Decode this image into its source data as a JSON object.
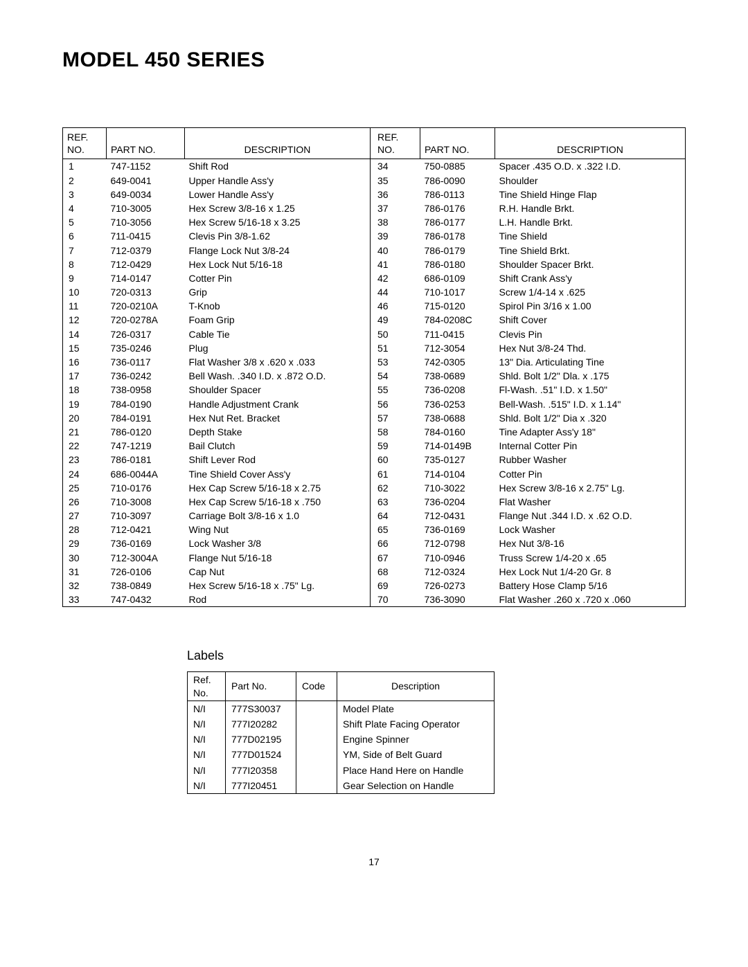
{
  "title": "MODEL 450 SERIES",
  "page_number": "17",
  "main_table": {
    "headers": {
      "ref1": "REF.",
      "ref2": "NO.",
      "part": "PART NO.",
      "desc": "DESCRIPTION"
    },
    "left": [
      {
        "r": "1",
        "p": "747-1152",
        "d": "Shift Rod"
      },
      {
        "r": "2",
        "p": "649-0041",
        "d": "Upper Handle Ass'y"
      },
      {
        "r": "3",
        "p": "649-0034",
        "d": "Lower Handle Ass'y"
      },
      {
        "r": "4",
        "p": "710-3005",
        "d": "Hex Screw 3/8-16 x 1.25"
      },
      {
        "r": "5",
        "p": "710-3056",
        "d": "Hex Screw 5/16-18 x 3.25"
      },
      {
        "r": "6",
        "p": "711-0415",
        "d": "Clevis Pin 3/8-1.62"
      },
      {
        "r": "7",
        "p": "712-0379",
        "d": "Flange Lock Nut 3/8-24"
      },
      {
        "r": "8",
        "p": "712-0429",
        "d": "Hex Lock Nut 5/16-18"
      },
      {
        "r": "9",
        "p": "714-0147",
        "d": "Cotter Pin"
      },
      {
        "r": "10",
        "p": "720-0313",
        "d": "Grip"
      },
      {
        "r": "11",
        "p": "720-0210A",
        "d": "T-Knob"
      },
      {
        "r": "12",
        "p": "720-0278A",
        "d": "Foam Grip"
      },
      {
        "r": "14",
        "p": "726-0317",
        "d": "Cable Tie"
      },
      {
        "r": "15",
        "p": "735-0246",
        "d": "Plug"
      },
      {
        "r": "16",
        "p": "736-0117",
        "d": "Flat Washer 3/8 x .620 x .033"
      },
      {
        "r": "17",
        "p": "736-0242",
        "d": "Bell Wash. .340 I.D. x .872 O.D."
      },
      {
        "r": "18",
        "p": "738-0958",
        "d": "Shoulder Spacer"
      },
      {
        "r": "19",
        "p": "784-0190",
        "d": "Handle Adjustment Crank"
      },
      {
        "r": "20",
        "p": "784-0191",
        "d": "Hex Nut Ret. Bracket"
      },
      {
        "r": "21",
        "p": "786-0120",
        "d": "Depth Stake"
      },
      {
        "r": "22",
        "p": "747-1219",
        "d": "Bail Clutch"
      },
      {
        "r": "23",
        "p": "786-0181",
        "d": "Shift Lever Rod"
      },
      {
        "r": "24",
        "p": "686-0044A",
        "d": "Tine Shield Cover Ass'y"
      },
      {
        "r": "25",
        "p": "710-0176",
        "d": "Hex Cap Screw 5/16-18 x 2.75"
      },
      {
        "r": "26",
        "p": "710-3008",
        "d": "Hex Cap Screw 5/16-18 x .750"
      },
      {
        "r": "27",
        "p": "710-3097",
        "d": "Carriage Bolt 3/8-16  x 1.0"
      },
      {
        "r": "28",
        "p": "712-0421",
        "d": "Wing Nut"
      },
      {
        "r": "29",
        "p": "736-0169",
        "d": "Lock Washer 3/8"
      },
      {
        "r": "30",
        "p": "712-3004A",
        "d": "Flange Nut 5/16-18"
      },
      {
        "r": "31",
        "p": "726-0106",
        "d": "Cap Nut"
      },
      {
        "r": "32",
        "p": "738-0849",
        "d": "Hex Screw 5/16-18 x .75\" Lg."
      },
      {
        "r": "33",
        "p": "747-0432",
        "d": "Rod"
      }
    ],
    "right": [
      {
        "r": "34",
        "p": "750-0885",
        "d": "Spacer .435 O.D. x .322 I.D."
      },
      {
        "r": "35",
        "p": "786-0090",
        "d": "Shoulder"
      },
      {
        "r": "36",
        "p": "786-0113",
        "d": "Tine Shield Hinge Flap"
      },
      {
        "r": "37",
        "p": "786-0176",
        "d": "R.H. Handle Brkt."
      },
      {
        "r": "38",
        "p": "786-0177",
        "d": "L.H. Handle Brkt."
      },
      {
        "r": "39",
        "p": "786-0178",
        "d": "Tine Shield"
      },
      {
        "r": "40",
        "p": "786-0179",
        "d": "Tine Shield Brkt."
      },
      {
        "r": "41",
        "p": "786-0180",
        "d": "Shoulder Spacer Brkt."
      },
      {
        "r": "42",
        "p": "686-0109",
        "d": "Shift Crank Ass'y"
      },
      {
        "r": "44",
        "p": "710-1017",
        "d": "Screw 1/4-14 x .625"
      },
      {
        "r": "46",
        "p": "715-0120",
        "d": "Spirol Pin 3/16 x 1.00"
      },
      {
        "r": "49",
        "p": "784-0208C",
        "d": "Shift Cover"
      },
      {
        "r": "50",
        "p": "711-0415",
        "d": "Clevis Pin"
      },
      {
        "r": "51",
        "p": "712-3054",
        "d": "Hex Nut 3/8-24 Thd."
      },
      {
        "r": "53",
        "p": "742-0305",
        "d": "13\" Dia. Articulating Tine"
      },
      {
        "r": "54",
        "p": "738-0689",
        "d": "Shld. Bolt 1/2\" Dla. x .175"
      },
      {
        "r": "55",
        "p": "736-0208",
        "d": "Fl-Wash. .51\" I.D. x 1.50\""
      },
      {
        "r": "56",
        "p": "736-0253",
        "d": "Bell-Wash. .515\" I.D. x 1.14\""
      },
      {
        "r": "57",
        "p": "738-0688",
        "d": "Shld. Bolt 1/2\" Dia x .320"
      },
      {
        "r": "58",
        "p": "784-0160",
        "d": "Tine Adapter Ass'y 18\""
      },
      {
        "r": "59",
        "p": "714-0149B",
        "d": "Internal Cotter Pin"
      },
      {
        "r": "60",
        "p": "735-0127",
        "d": "Rubber Washer"
      },
      {
        "r": "61",
        "p": "714-0104",
        "d": "Cotter Pin"
      },
      {
        "r": "62",
        "p": "710-3022",
        "d": "Hex Screw 3/8-16 x 2.75\" Lg."
      },
      {
        "r": "63",
        "p": "736-0204",
        "d": "Flat Washer"
      },
      {
        "r": "64",
        "p": "712-0431",
        "d": "Flange Nut .344 I.D. x .62 O.D."
      },
      {
        "r": "65",
        "p": "736-0169",
        "d": "Lock Washer"
      },
      {
        "r": "66",
        "p": "712-0798",
        "d": "Hex Nut 3/8-16"
      },
      {
        "r": "67",
        "p": "710-0946",
        "d": "Truss Screw 1/4-20 x .65"
      },
      {
        "r": "68",
        "p": "712-0324",
        "d": "Hex Lock Nut 1/4-20 Gr. 8"
      },
      {
        "r": "69",
        "p": "726-0273",
        "d": "Battery Hose Clamp 5/16"
      },
      {
        "r": "70",
        "p": "736-3090",
        "d": "Flat Washer .260 x .720 x .060"
      }
    ]
  },
  "labels_section": {
    "title": "Labels",
    "headers": {
      "ref1": "Ref.",
      "ref2": "No.",
      "part": "Part No.",
      "code": "Code",
      "desc": "Description"
    },
    "rows": [
      {
        "r": "N/I",
        "p": "777S30037",
        "c": "",
        "d": "Model Plate"
      },
      {
        "r": "N/I",
        "p": "777I20282",
        "c": "",
        "d": "Shift Plate Facing Operator"
      },
      {
        "r": "N/I",
        "p": "777D02195",
        "c": "",
        "d": "Engine Spinner"
      },
      {
        "r": "N/I",
        "p": "777D01524",
        "c": "",
        "d": "YM, Side of Belt Guard"
      },
      {
        "r": "N/I",
        "p": "777I20358",
        "c": "",
        "d": "Place Hand Here on Handle"
      },
      {
        "r": "N/I",
        "p": "777I20451",
        "c": "",
        "d": "Gear Selection on Handle"
      }
    ]
  }
}
